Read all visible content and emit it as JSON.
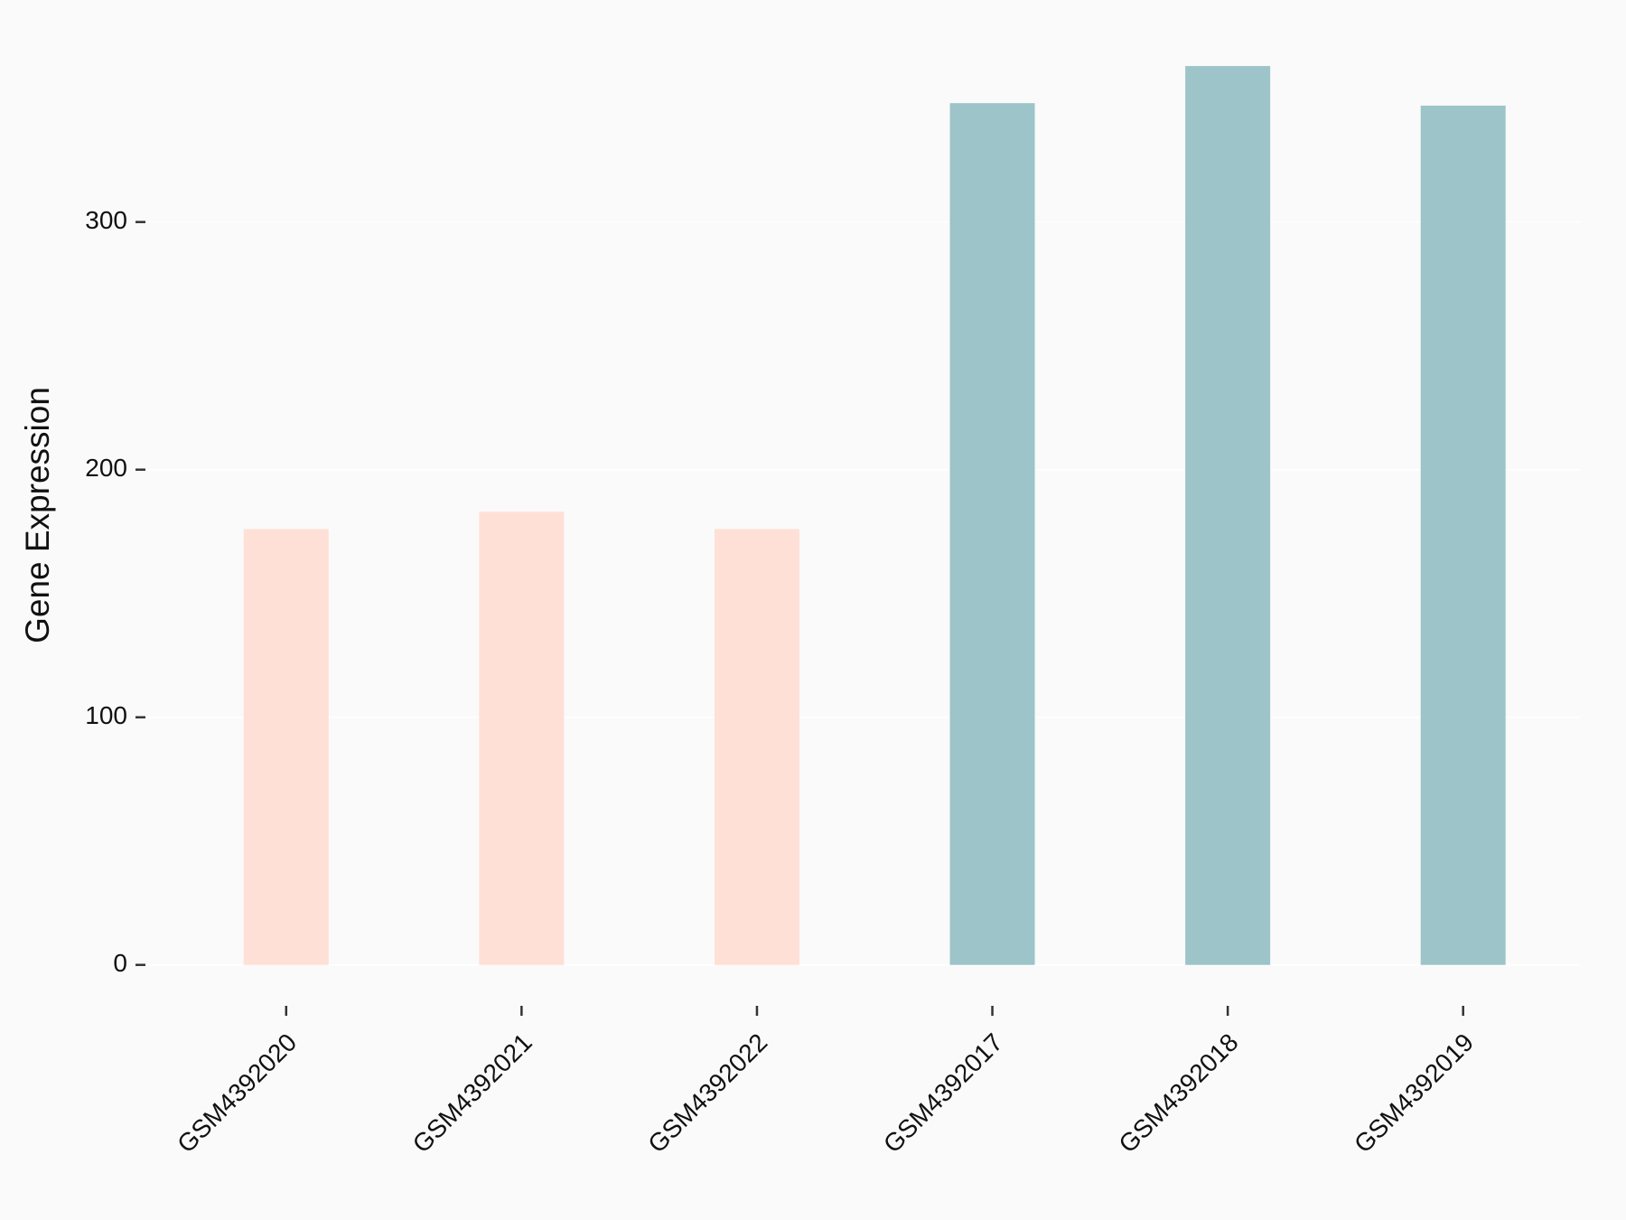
{
  "chart_data": {
    "type": "bar",
    "y_label": "Gene Expression",
    "categories": [
      "GSM4392020",
      "GSM4392021",
      "GSM4392022",
      "GSM4392017",
      "GSM4392018",
      "GSM4392019"
    ],
    "values": [
      176,
      183,
      176,
      348,
      363,
      347
    ],
    "colors": [
      "#ffe0d6",
      "#ffe0d6",
      "#ffe0d6",
      "#9dc4c8",
      "#9dc4c8",
      "#9dc4c8"
    ],
    "ylim": [
      -17,
      372
    ],
    "yticks": [
      0,
      100,
      200,
      300
    ],
    "grid": true
  }
}
